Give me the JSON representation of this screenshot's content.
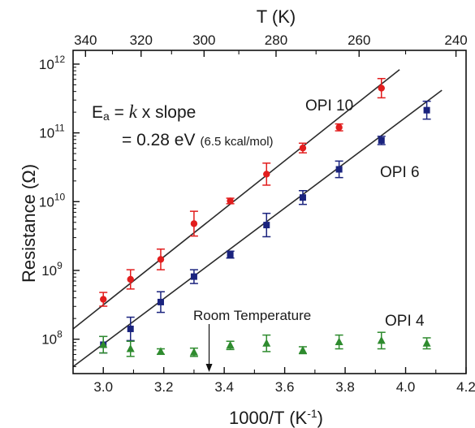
{
  "chart_data": {
    "type": "scatter",
    "xlabel": "1000/T (K",
    "xlabel_sup": "-1",
    "xlabel_close": ")",
    "ylabel": "Resistance (Ω)",
    "top_axis_label": "T (K)",
    "xlim": [
      2.9,
      4.2
    ],
    "ylim_log10": [
      7.5,
      12.2
    ],
    "y_scale": "log",
    "x_ticks": [
      "3.0",
      "3.2",
      "3.4",
      "3.6",
      "3.8",
      "4.0",
      "4.2"
    ],
    "y_ticks": [
      {
        "base": "10",
        "exp": "8",
        "value": 8
      },
      {
        "base": "10",
        "exp": "9",
        "value": 9
      },
      {
        "base": "10",
        "exp": "10",
        "value": 10
      },
      {
        "base": "10",
        "exp": "11",
        "value": 11
      },
      {
        "base": "10",
        "exp": "12",
        "value": 12
      }
    ],
    "top_ticks": [
      {
        "label": "340",
        "T": 340
      },
      {
        "label": "320",
        "T": 320
      },
      {
        "label": "300",
        "T": 300
      },
      {
        "label": "280",
        "T": 280
      },
      {
        "label": "260",
        "T": 260
      },
      {
        "label": "240",
        "T": 240
      }
    ],
    "annotation": {
      "ea_prefix": "E",
      "ea_sub": "a",
      "ea_eq": " = ",
      "ea_k": "k",
      "ea_rest": " x slope",
      "line2": "= 0.28 eV",
      "line2_small": "(6.5 kcal/mol)"
    },
    "room_temperature": {
      "label": "Room Temperature",
      "x": 3.35
    },
    "series": [
      {
        "name": "OPI 10",
        "color": "#e21d1d",
        "marker": "circle",
        "x": [
          3.0,
          3.09,
          3.19,
          3.3,
          3.42,
          3.54,
          3.66,
          3.78,
          3.92
        ],
        "log10_y": [
          8.58,
          8.87,
          9.16,
          9.68,
          10.01,
          10.4,
          10.78,
          11.08,
          11.65
        ],
        "err_log10": [
          0.1,
          0.14,
          0.15,
          0.18,
          0.04,
          0.16,
          0.07,
          0.05,
          0.14
        ],
        "fit_x": [
          2.9,
          3.98
        ],
        "fit_log10_y": [
          8.15,
          11.92
        ]
      },
      {
        "name": "OPI 6",
        "color": "#1a237e",
        "marker": "square",
        "x": [
          3.0,
          3.09,
          3.19,
          3.3,
          3.42,
          3.54,
          3.66,
          3.78,
          3.92,
          4.07
        ],
        "log10_y": [
          7.92,
          8.15,
          8.54,
          8.91,
          9.23,
          9.66,
          10.06,
          10.47,
          10.89,
          11.33
        ],
        "err_log10": [
          0.12,
          0.17,
          0.15,
          0.1,
          0.05,
          0.17,
          0.1,
          0.12,
          0.06,
          0.13
        ],
        "fit_x": [
          2.9,
          4.12
        ],
        "fit_log10_y": [
          7.6,
          11.62
        ]
      },
      {
        "name": "OPI 4",
        "color": "#2e8b2e",
        "marker": "triangle",
        "x": [
          3.0,
          3.09,
          3.19,
          3.3,
          3.42,
          3.54,
          3.66,
          3.78,
          3.92,
          4.07
        ],
        "log10_y": [
          7.92,
          7.86,
          7.82,
          7.81,
          7.91,
          7.94,
          7.84,
          7.96,
          7.98,
          7.94
        ],
        "err_log10": [
          0.12,
          0.11,
          0.04,
          0.06,
          0.06,
          0.12,
          0.05,
          0.1,
          0.12,
          0.08
        ]
      }
    ]
  }
}
